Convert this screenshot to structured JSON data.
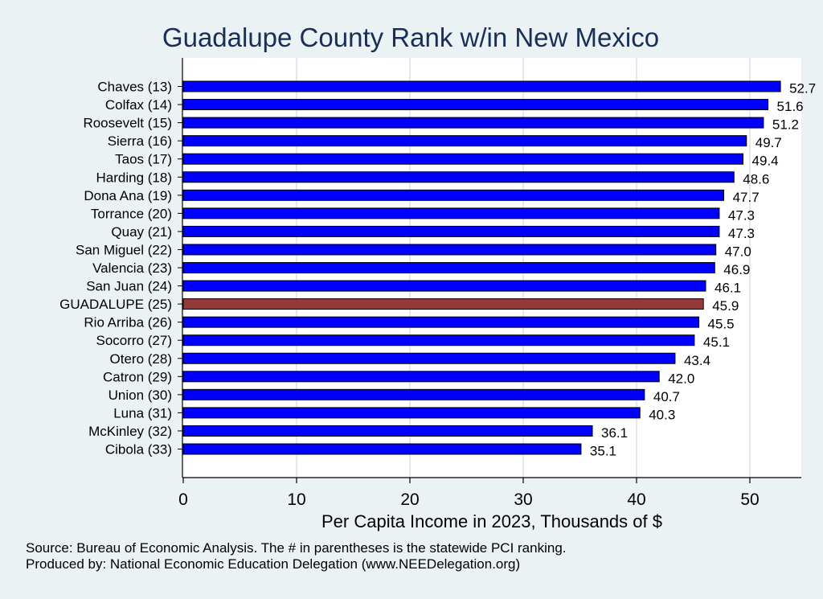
{
  "chart_data": {
    "type": "bar",
    "orientation": "horizontal",
    "title": "Guadalupe County Rank w/in New Mexico",
    "xlabel": "Per Capita Income in 2023, Thousands of $",
    "ylabel": "",
    "xlim": [
      0,
      54.5
    ],
    "xticks": [
      0,
      10,
      20,
      30,
      40,
      50
    ],
    "grid": true,
    "categories": [
      "Chaves (13)",
      "Colfax (14)",
      "Roosevelt (15)",
      "Sierra (16)",
      "Taos (17)",
      "Harding (18)",
      "Dona Ana (19)",
      "Torrance (20)",
      "Quay (21)",
      "San Miguel (22)",
      "Valencia (23)",
      "San Juan (24)",
      "GUADALUPE (25)",
      "Rio Arriba (26)",
      "Socorro (27)",
      "Otero (28)",
      "Catron (29)",
      "Union (30)",
      "Luna (31)",
      "McKinley (32)",
      "Cibola (33)"
    ],
    "values": [
      52.7,
      51.6,
      51.2,
      49.7,
      49.4,
      48.6,
      47.7,
      47.3,
      47.3,
      47.0,
      46.9,
      46.1,
      45.9,
      45.5,
      45.1,
      43.4,
      42.0,
      40.7,
      40.3,
      36.1,
      35.1
    ],
    "value_labels": [
      "52.7",
      "51.6",
      "51.2",
      "49.7",
      "49.4",
      "48.6",
      "47.7",
      "47.3",
      "47.3",
      "47.0",
      "46.9",
      "46.1",
      "45.9",
      "45.5",
      "45.1",
      "43.4",
      "42.0",
      "40.7",
      "40.3",
      "36.1",
      "35.1"
    ],
    "highlight_index": 12,
    "colors": {
      "bar": "#0000ff",
      "highlight": "#943a3a",
      "title": "#1a2e5a",
      "grid": "#d8e4e8",
      "background": "#eaf2f3",
      "plot_background": "#ffffff"
    }
  },
  "notes": {
    "source": "Source: Bureau of Economic Analysis. The # in parentheses is the statewide PCI ranking.",
    "produced_by": "Produced by: National Economic Education Delegation (www.NEEDelegation.org)"
  }
}
